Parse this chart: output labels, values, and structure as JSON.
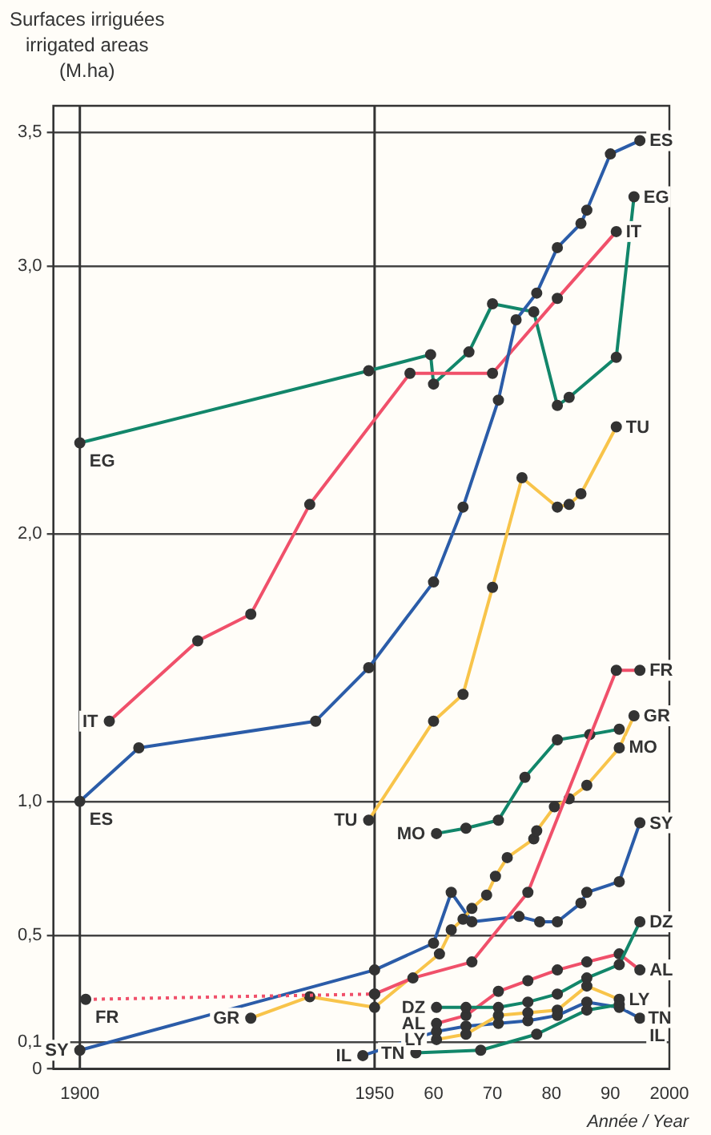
{
  "chart_data": {
    "type": "line",
    "ylabel": "Surfaces irriguées\nirrigated areas\n(M.ha)",
    "xlabel": "Année / Year",
    "xlim": [
      1895.5,
      2000
    ],
    "xticks": [
      1900,
      1950,
      {
        "value": 1960,
        "label": "60"
      },
      {
        "value": 1970,
        "label": "70"
      },
      {
        "value": 1980,
        "label": "80"
      },
      {
        "value": 1990,
        "label": "90"
      },
      2000
    ],
    "ylim": [
      0,
      3.6
    ],
    "yticks": [
      0,
      {
        "value": 0.1,
        "label": "0,1"
      },
      {
        "value": 0.5,
        "label": "0,5"
      },
      {
        "value": 1,
        "label": "1,0"
      },
      {
        "value": 2,
        "label": "2,0"
      },
      {
        "value": 3,
        "label": "3,0"
      },
      {
        "value": 3.5,
        "label": "3,5"
      }
    ],
    "grid": "y",
    "legend": false,
    "marker": "circle",
    "line_style": "solid",
    "ref_lines": [
      {
        "axis": "x",
        "value": 1900,
        "label": null
      },
      {
        "axis": "x",
        "value": 1950,
        "label": null
      }
    ],
    "series": [
      {
        "name": "ES",
        "color": "#2b5ca8",
        "x": [
          1900,
          1910,
          1940,
          1949,
          1960,
          1965,
          1971,
          1974,
          1977.5,
          1981,
          1985,
          1986,
          1990,
          1995
        ],
        "values": [
          1.0,
          1.2,
          1.3,
          1.5,
          1.82,
          2.1,
          2.5,
          2.8,
          2.9,
          3.07,
          3.16,
          3.21,
          3.42,
          3.47
        ]
      },
      {
        "name": "IT",
        "color": "#f0506a",
        "x": [
          1905,
          1920,
          1929,
          1939,
          1956,
          1970,
          1981,
          1991
        ],
        "values": [
          1.3,
          1.6,
          1.7,
          2.11,
          2.6,
          2.6,
          2.88,
          3.13
        ]
      },
      {
        "name": "EG",
        "color": "#12866a",
        "x": [
          1900,
          1949,
          1959.5,
          1960,
          1966,
          1970,
          1977,
          1981,
          1983,
          1991,
          1994
        ],
        "values": [
          2.34,
          2.61,
          2.67,
          2.56,
          2.68,
          2.86,
          2.83,
          2.48,
          2.51,
          2.66,
          3.26
        ]
      },
      {
        "name": "TU",
        "color": "#f8c44a",
        "x": [
          1949,
          1960,
          1965,
          1970,
          1975,
          1981,
          1983,
          1985,
          1991
        ],
        "values": [
          0.93,
          1.3,
          1.4,
          1.8,
          2.21,
          2.1,
          2.11,
          2.15,
          2.4
        ]
      },
      {
        "name": "FR",
        "color": "#f0506a",
        "line_style": "dotted",
        "x": [
          1901,
          1950
        ],
        "values": [
          0.26,
          0.28
        ]
      },
      {
        "name": "FR",
        "color": "#f0506a",
        "x": [
          1950,
          1956.5,
          1966.5,
          1976,
          1991,
          1995
        ],
        "values": [
          0.28,
          0.34,
          0.4,
          0.66,
          1.49,
          1.49
        ]
      },
      {
        "name": "GR",
        "color": "#f8c44a",
        "x": [
          1929,
          1939,
          1950,
          1961,
          1963,
          1965,
          1966.5,
          1969,
          1970.5,
          1972.5,
          1977,
          1977.5,
          1980.5,
          1983,
          1986,
          1991.5,
          1994
        ],
        "values": [
          0.19,
          0.27,
          0.23,
          0.43,
          0.52,
          0.56,
          0.6,
          0.65,
          0.72,
          0.79,
          0.86,
          0.89,
          0.98,
          1.01,
          1.06,
          1.2,
          1.32
        ]
      },
      {
        "name": "MO",
        "color": "#12866a",
        "x": [
          1960.5,
          1965.5,
          1971,
          1975.5,
          1981,
          1986.5,
          1991.5
        ],
        "values": [
          0.88,
          0.9,
          0.93,
          1.09,
          1.23,
          1.25,
          1.27
        ]
      },
      {
        "name": "SY",
        "color": "#2b5ca8",
        "x": [
          1900,
          1950,
          1960,
          1963,
          1966.5,
          1974.5,
          1978,
          1981,
          1985,
          1986,
          1991.5,
          1995
        ],
        "values": [
          0.07,
          0.37,
          0.47,
          0.66,
          0.55,
          0.57,
          0.55,
          0.55,
          0.62,
          0.66,
          0.7,
          0.92
        ]
      },
      {
        "name": "DZ",
        "color": "#12866a",
        "x": [
          1960.5,
          1965.5,
          1971,
          1976,
          1981,
          1986,
          1991.5,
          1995
        ],
        "values": [
          0.23,
          0.23,
          0.23,
          0.25,
          0.28,
          0.34,
          0.39,
          0.55
        ]
      },
      {
        "name": "AL",
        "color": "#f0506a",
        "x": [
          1960.5,
          1965.5,
          1971,
          1976,
          1981,
          1986,
          1991.5,
          1995
        ],
        "values": [
          0.17,
          0.2,
          0.29,
          0.33,
          0.37,
          0.4,
          0.43,
          0.37
        ]
      },
      {
        "name": "LY",
        "color": "#f8c44a",
        "x": [
          1960.5,
          1965.5,
          1971,
          1976,
          1981,
          1986,
          1991.5
        ],
        "values": [
          0.11,
          0.13,
          0.2,
          0.21,
          0.22,
          0.31,
          0.26
        ]
      },
      {
        "name": "TN",
        "color": "#12866a",
        "x": [
          1957,
          1968,
          1977.5,
          1986,
          1991.5
        ],
        "values": [
          0.06,
          0.07,
          0.13,
          0.22,
          0.24
        ]
      },
      {
        "name": "IL",
        "color": "#2b5ca8",
        "x": [
          1948,
          1960.5,
          1965.5,
          1971,
          1976,
          1981,
          1986,
          1991.5,
          1995
        ],
        "values": [
          0.05,
          0.14,
          0.16,
          0.17,
          0.18,
          0.2,
          0.25,
          0.23,
          0.19
        ]
      }
    ]
  }
}
